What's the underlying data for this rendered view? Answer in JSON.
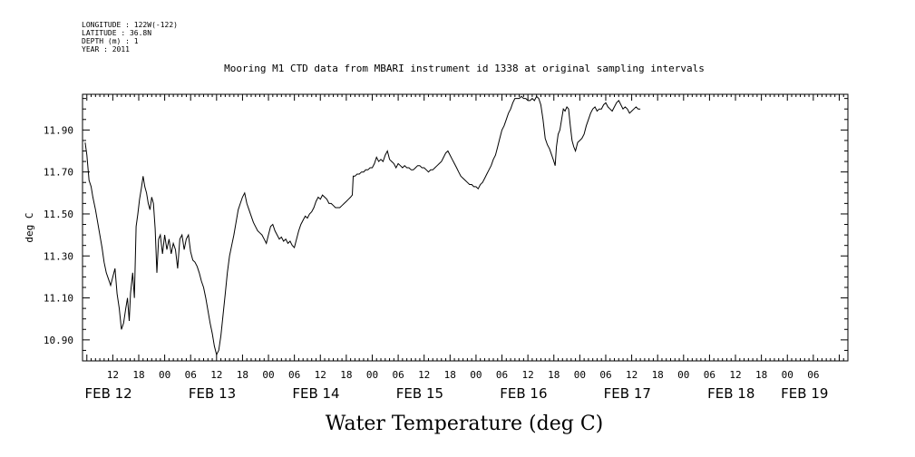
{
  "header": {
    "longitude": "LONGITUDE : 122W(-122)",
    "latitude": "LATITUDE : 36.8N",
    "depth": "DEPTH (m) : 1",
    "year": "YEAR : 2011"
  },
  "chart_data": {
    "type": "line",
    "title": "Mooring M1 CTD data from MBARI instrument id 1338 at original sampling intervals",
    "xlabel": "Water Temperature (deg C)",
    "ylabel": "deg C",
    "x_unit": "hours since FEB 12 00:00",
    "xlim": [
      -7,
      170
    ],
    "ylim": [
      10.8,
      12.07
    ],
    "y_ticks": [
      10.9,
      11.1,
      11.3,
      11.5,
      11.7,
      11.9
    ],
    "y_tick_labels": [
      "10.90",
      "11.10",
      "11.30",
      "11.50",
      "11.70",
      "11.90"
    ],
    "x_ticks": [
      {
        "x": 0,
        "label": "12"
      },
      {
        "x": 6,
        "label": "18"
      },
      {
        "x": 12,
        "label": "00"
      },
      {
        "x": 18,
        "label": "06"
      },
      {
        "x": 24,
        "label": "12"
      },
      {
        "x": 30,
        "label": "18"
      },
      {
        "x": 36,
        "label": "00"
      },
      {
        "x": 42,
        "label": "06"
      },
      {
        "x": 48,
        "label": "12"
      },
      {
        "x": 54,
        "label": "18"
      },
      {
        "x": 60,
        "label": "00"
      },
      {
        "x": 66,
        "label": "06"
      },
      {
        "x": 72,
        "label": "12"
      },
      {
        "x": 78,
        "label": "18"
      },
      {
        "x": 84,
        "label": "00"
      },
      {
        "x": 90,
        "label": "06"
      },
      {
        "x": 96,
        "label": "12"
      },
      {
        "x": 102,
        "label": "18"
      },
      {
        "x": 108,
        "label": "00"
      },
      {
        "x": 114,
        "label": "06"
      },
      {
        "x": 120,
        "label": "12"
      },
      {
        "x": 126,
        "label": "18"
      },
      {
        "x": 132,
        "label": "00"
      },
      {
        "x": 138,
        "label": "06"
      },
      {
        "x": 144,
        "label": "12"
      },
      {
        "x": 150,
        "label": "18"
      },
      {
        "x": 156,
        "label": "00"
      },
      {
        "x": 162,
        "label": "06"
      }
    ],
    "date_labels": [
      {
        "x": -1,
        "label": "FEB 12"
      },
      {
        "x": 23,
        "label": "FEB 13"
      },
      {
        "x": 47,
        "label": "FEB 14"
      },
      {
        "x": 71,
        "label": "FEB 15"
      },
      {
        "x": 95,
        "label": "FEB 16"
      },
      {
        "x": 119,
        "label": "FEB 17"
      },
      {
        "x": 143,
        "label": "FEB 18"
      },
      {
        "x": 160,
        "label": "FEB 19"
      }
    ],
    "grid": false,
    "series": [
      {
        "points": [
          [
            -6.4,
            11.84
          ],
          [
            -6.0,
            11.78
          ],
          [
            -5.5,
            11.66
          ],
          [
            -5.0,
            11.63
          ],
          [
            -4.6,
            11.58
          ],
          [
            -4.0,
            11.52
          ],
          [
            -3.5,
            11.46
          ],
          [
            -3.0,
            11.4
          ],
          [
            -2.5,
            11.34
          ],
          [
            -2.0,
            11.27
          ],
          [
            -1.5,
            11.22
          ],
          [
            -1.0,
            11.19
          ],
          [
            -0.5,
            11.16
          ],
          [
            0.0,
            11.2
          ],
          [
            0.5,
            11.24
          ],
          [
            1.0,
            11.12
          ],
          [
            1.5,
            11.05
          ],
          [
            2.0,
            10.95
          ],
          [
            2.5,
            10.98
          ],
          [
            3.0,
            11.05
          ],
          [
            3.4,
            11.1
          ],
          [
            3.8,
            10.99
          ],
          [
            4.1,
            11.12
          ],
          [
            4.6,
            11.22
          ],
          [
            5.0,
            11.1
          ],
          [
            5.4,
            11.44
          ],
          [
            5.8,
            11.5
          ],
          [
            6.2,
            11.57
          ],
          [
            6.6,
            11.62
          ],
          [
            7.0,
            11.68
          ],
          [
            7.4,
            11.63
          ],
          [
            7.8,
            11.6
          ],
          [
            8.2,
            11.55
          ],
          [
            8.6,
            11.52
          ],
          [
            9.0,
            11.58
          ],
          [
            9.4,
            11.55
          ],
          [
            9.8,
            11.43
          ],
          [
            10.2,
            11.22
          ],
          [
            10.6,
            11.38
          ],
          [
            11.0,
            11.4
          ],
          [
            11.5,
            11.31
          ],
          [
            12.0,
            11.4
          ],
          [
            12.5,
            11.33
          ],
          [
            13.0,
            11.38
          ],
          [
            13.5,
            11.31
          ],
          [
            14.0,
            11.36
          ],
          [
            14.5,
            11.33
          ],
          [
            15.0,
            11.24
          ],
          [
            15.5,
            11.38
          ],
          [
            16.0,
            11.4
          ],
          [
            16.5,
            11.33
          ],
          [
            17.0,
            11.38
          ],
          [
            17.5,
            11.4
          ],
          [
            18.0,
            11.32
          ],
          [
            18.5,
            11.28
          ],
          [
            19.0,
            11.27
          ],
          [
            19.5,
            11.25
          ],
          [
            20.0,
            11.22
          ],
          [
            20.5,
            11.18
          ],
          [
            21.0,
            11.15
          ],
          [
            21.5,
            11.1
          ],
          [
            22.0,
            11.04
          ],
          [
            22.5,
            10.98
          ],
          [
            23.0,
            10.93
          ],
          [
            23.5,
            10.87
          ],
          [
            24.0,
            10.83
          ],
          [
            24.5,
            10.85
          ],
          [
            25.0,
            10.92
          ],
          [
            25.5,
            11.02
          ],
          [
            26.0,
            11.12
          ],
          [
            26.5,
            11.22
          ],
          [
            27.0,
            11.3
          ],
          [
            27.5,
            11.35
          ],
          [
            28.0,
            11.4
          ],
          [
            28.5,
            11.46
          ],
          [
            29.0,
            11.52
          ],
          [
            29.5,
            11.55
          ],
          [
            30.0,
            11.58
          ],
          [
            30.5,
            11.6
          ],
          [
            31.0,
            11.55
          ],
          [
            31.5,
            11.52
          ],
          [
            32.0,
            11.49
          ],
          [
            32.5,
            11.46
          ],
          [
            33.0,
            11.44
          ],
          [
            33.5,
            11.42
          ],
          [
            34.0,
            11.41
          ],
          [
            34.5,
            11.4
          ],
          [
            35.0,
            11.38
          ],
          [
            35.5,
            11.36
          ],
          [
            36.0,
            11.4
          ],
          [
            36.5,
            11.44
          ],
          [
            37.0,
            11.45
          ],
          [
            37.5,
            11.42
          ],
          [
            38.0,
            11.4
          ],
          [
            38.5,
            11.38
          ],
          [
            39.0,
            11.39
          ],
          [
            39.5,
            11.37
          ],
          [
            40.0,
            11.38
          ],
          [
            40.5,
            11.36
          ],
          [
            41.0,
            11.37
          ],
          [
            41.5,
            11.35
          ],
          [
            42.0,
            11.34
          ],
          [
            42.5,
            11.38
          ],
          [
            43.0,
            11.42
          ],
          [
            43.5,
            11.45
          ],
          [
            44.0,
            11.47
          ],
          [
            44.5,
            11.49
          ],
          [
            45.0,
            11.48
          ],
          [
            45.5,
            11.5
          ],
          [
            46.0,
            11.51
          ],
          [
            46.5,
            11.53
          ],
          [
            47.0,
            11.56
          ],
          [
            47.5,
            11.58
          ],
          [
            48.0,
            11.57
          ],
          [
            48.5,
            11.59
          ],
          [
            49.0,
            11.58
          ],
          [
            49.5,
            11.57
          ],
          [
            50.0,
            11.55
          ],
          [
            50.5,
            11.55
          ],
          [
            51.0,
            11.54
          ],
          [
            51.5,
            11.53
          ],
          [
            52.0,
            11.53
          ],
          [
            52.5,
            11.53
          ],
          [
            53.0,
            11.54
          ],
          [
            53.5,
            11.55
          ],
          [
            54.0,
            11.56
          ],
          [
            54.5,
            11.57
          ],
          [
            55.0,
            11.58
          ],
          [
            55.4,
            11.59
          ],
          [
            55.6,
            11.68
          ],
          [
            56.0,
            11.68
          ],
          [
            56.5,
            11.69
          ],
          [
            57.0,
            11.69
          ],
          [
            57.5,
            11.7
          ],
          [
            58.0,
            11.7
          ],
          [
            58.5,
            11.71
          ],
          [
            59.0,
            11.71
          ],
          [
            59.5,
            11.72
          ],
          [
            60.0,
            11.72
          ],
          [
            60.5,
            11.74
          ],
          [
            61.0,
            11.77
          ],
          [
            61.5,
            11.75
          ],
          [
            62.0,
            11.76
          ],
          [
            62.5,
            11.75
          ],
          [
            63.0,
            11.78
          ],
          [
            63.5,
            11.8
          ],
          [
            64.0,
            11.76
          ],
          [
            64.5,
            11.75
          ],
          [
            65.0,
            11.74
          ],
          [
            65.5,
            11.72
          ],
          [
            66.0,
            11.74
          ],
          [
            66.5,
            11.73
          ],
          [
            67.0,
            11.72
          ],
          [
            67.5,
            11.73
          ],
          [
            68.0,
            11.72
          ],
          [
            68.5,
            11.72
          ],
          [
            69.0,
            11.71
          ],
          [
            69.5,
            11.71
          ],
          [
            70.0,
            11.72
          ],
          [
            70.5,
            11.73
          ],
          [
            71.0,
            11.73
          ],
          [
            71.5,
            11.72
          ],
          [
            72.0,
            11.72
          ],
          [
            72.5,
            11.71
          ],
          [
            73.0,
            11.7
          ],
          [
            73.5,
            11.71
          ],
          [
            74.0,
            11.71
          ],
          [
            74.5,
            11.72
          ],
          [
            75.0,
            11.73
          ],
          [
            75.5,
            11.74
          ],
          [
            76.0,
            11.75
          ],
          [
            76.5,
            11.77
          ],
          [
            77.0,
            11.79
          ],
          [
            77.5,
            11.8
          ],
          [
            78.0,
            11.78
          ],
          [
            78.5,
            11.76
          ],
          [
            79.0,
            11.74
          ],
          [
            79.5,
            11.72
          ],
          [
            80.0,
            11.7
          ],
          [
            80.5,
            11.68
          ],
          [
            81.0,
            11.67
          ],
          [
            81.5,
            11.66
          ],
          [
            82.0,
            11.65
          ],
          [
            82.5,
            11.64
          ],
          [
            83.0,
            11.64
          ],
          [
            83.5,
            11.63
          ],
          [
            84.0,
            11.63
          ],
          [
            84.5,
            11.62
          ],
          [
            85.0,
            11.64
          ],
          [
            85.5,
            11.65
          ],
          [
            86.0,
            11.67
          ],
          [
            86.5,
            11.69
          ],
          [
            87.0,
            11.71
          ],
          [
            87.5,
            11.73
          ],
          [
            88.0,
            11.76
          ],
          [
            88.5,
            11.78
          ],
          [
            89.0,
            11.82
          ],
          [
            89.5,
            11.86
          ],
          [
            90.0,
            11.9
          ],
          [
            90.5,
            11.92
          ],
          [
            91.0,
            11.95
          ],
          [
            91.5,
            11.98
          ],
          [
            92.0,
            12.0
          ],
          [
            92.5,
            12.03
          ],
          [
            93.0,
            12.05
          ],
          [
            93.5,
            12.05
          ],
          [
            94.0,
            12.05
          ],
          [
            94.5,
            12.06
          ],
          [
            95.0,
            12.05
          ],
          [
            95.5,
            12.05
          ],
          [
            96.0,
            12.04
          ],
          [
            96.5,
            12.04
          ],
          [
            97.0,
            12.05
          ],
          [
            97.5,
            12.04
          ],
          [
            98.0,
            12.06
          ],
          [
            98.5,
            12.05
          ],
          [
            99.0,
            12.02
          ],
          [
            99.5,
            11.95
          ],
          [
            100.0,
            11.86
          ],
          [
            100.5,
            11.83
          ],
          [
            101.0,
            11.81
          ],
          [
            101.5,
            11.78
          ],
          [
            102.0,
            11.75
          ],
          [
            102.3,
            11.73
          ],
          [
            102.6,
            11.82
          ],
          [
            103.0,
            11.88
          ],
          [
            103.4,
            11.9
          ],
          [
            103.8,
            11.95
          ],
          [
            104.2,
            12.0
          ],
          [
            104.6,
            11.99
          ],
          [
            105.0,
            12.01
          ],
          [
            105.4,
            12.0
          ],
          [
            105.8,
            11.92
          ],
          [
            106.2,
            11.85
          ],
          [
            106.6,
            11.82
          ],
          [
            107.0,
            11.8
          ],
          [
            107.5,
            11.84
          ],
          [
            108.0,
            11.85
          ],
          [
            108.5,
            11.86
          ],
          [
            109.0,
            11.88
          ],
          [
            109.5,
            11.92
          ],
          [
            110.0,
            11.95
          ],
          [
            110.5,
            11.98
          ],
          [
            111.0,
            12.0
          ],
          [
            111.5,
            12.01
          ],
          [
            112.0,
            11.99
          ],
          [
            112.5,
            12.0
          ],
          [
            113.0,
            12.0
          ],
          [
            113.5,
            12.02
          ],
          [
            114.0,
            12.03
          ],
          [
            114.5,
            12.01
          ],
          [
            115.0,
            12.0
          ],
          [
            115.5,
            11.99
          ],
          [
            116.0,
            12.01
          ],
          [
            116.5,
            12.03
          ],
          [
            117.0,
            12.04
          ],
          [
            117.5,
            12.02
          ],
          [
            118.0,
            12.0
          ],
          [
            118.5,
            12.01
          ],
          [
            119.0,
            12.0
          ],
          [
            119.5,
            11.98
          ],
          [
            120.0,
            11.99
          ],
          [
            120.5,
            12.0
          ],
          [
            121.0,
            12.01
          ],
          [
            121.5,
            12.0
          ],
          [
            122.0,
            12.0
          ]
        ]
      }
    ]
  }
}
